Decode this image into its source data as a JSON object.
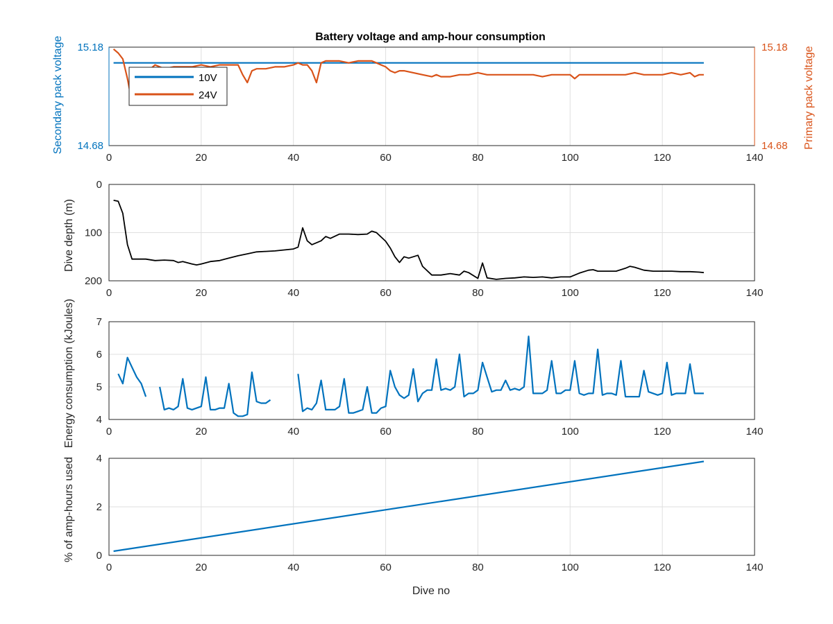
{
  "colors": {
    "blue": "#0072bd",
    "orange": "#d95319",
    "black": "#000000",
    "grid": "#dfdfdf",
    "axis": "#262626"
  },
  "chart_data": [
    {
      "type": "line",
      "title": "Battery voltage and amp-hour consumption",
      "xlabel": "",
      "xlim": [
        0,
        140
      ],
      "xticks": [
        "0",
        "20",
        "40",
        "60",
        "80",
        "100",
        "120",
        "140"
      ],
      "ylabel_left": "Secondary pack voltage",
      "ylabel_right": "Primary pack voltage",
      "ylim": [
        14.68,
        15.18
      ],
      "yticks_left": [
        "14.68",
        "15.18"
      ],
      "yticks_right": [
        "14.68",
        "15.18"
      ],
      "grid": true,
      "legend": "top-left",
      "series": [
        {
          "name": "10V",
          "axis": "left",
          "color": "#0072bd",
          "x": [
            1,
            129
          ],
          "y": [
            15.1,
            15.1
          ]
        },
        {
          "name": "24V",
          "axis": "right",
          "color": "#d95319",
          "x": [
            1,
            2,
            3,
            4,
            5,
            6,
            7,
            8,
            9,
            10,
            12,
            14,
            16,
            18,
            20,
            22,
            24,
            26,
            27,
            28,
            29,
            30,
            31,
            32,
            34,
            36,
            38,
            40,
            41,
            42,
            43,
            44,
            45,
            46,
            47,
            48,
            50,
            52,
            54,
            56,
            57,
            58,
            59,
            60,
            61,
            62,
            63,
            64,
            66,
            68,
            70,
            71,
            72,
            74,
            76,
            78,
            80,
            82,
            84,
            86,
            88,
            90,
            92,
            94,
            96,
            98,
            100,
            101,
            102,
            104,
            106,
            108,
            110,
            112,
            114,
            116,
            118,
            120,
            122,
            124,
            126,
            127,
            128,
            129
          ],
          "y": [
            15.17,
            15.15,
            15.12,
            15.02,
            14.9,
            14.89,
            14.97,
            15.05,
            15.07,
            15.09,
            15.07,
            15.08,
            15.08,
            15.08,
            15.09,
            15.08,
            15.09,
            15.09,
            15.09,
            15.09,
            15.04,
            15.0,
            15.06,
            15.07,
            15.07,
            15.08,
            15.08,
            15.09,
            15.1,
            15.09,
            15.09,
            15.06,
            15.0,
            15.1,
            15.11,
            15.11,
            15.11,
            15.1,
            15.11,
            15.11,
            15.11,
            15.1,
            15.09,
            15.08,
            15.06,
            15.05,
            15.06,
            15.06,
            15.05,
            15.04,
            15.03,
            15.04,
            15.03,
            15.03,
            15.04,
            15.04,
            15.05,
            15.04,
            15.04,
            15.04,
            15.04,
            15.04,
            15.04,
            15.03,
            15.04,
            15.04,
            15.04,
            15.02,
            15.04,
            15.04,
            15.04,
            15.04,
            15.04,
            15.04,
            15.05,
            15.04,
            15.04,
            15.04,
            15.05,
            15.04,
            15.05,
            15.03,
            15.04,
            15.04
          ]
        }
      ]
    },
    {
      "type": "line",
      "title": "",
      "xlabel": "",
      "ylabel": "Dive depth (m)",
      "xlim": [
        0,
        140
      ],
      "xticks": [
        "0",
        "20",
        "40",
        "60",
        "80",
        "100",
        "120",
        "140"
      ],
      "ylim": [
        0,
        200
      ],
      "yticks": [
        "0",
        "100",
        "200"
      ],
      "y_reversed": true,
      "grid": true,
      "series": [
        {
          "color": "#000000",
          "x": [
            1,
            2,
            3,
            4,
            5,
            6,
            8,
            10,
            12,
            14,
            15,
            16,
            18,
            19,
            20,
            22,
            24,
            26,
            28,
            30,
            32,
            34,
            36,
            38,
            40,
            41,
            42,
            43,
            44,
            46,
            47,
            48,
            50,
            52,
            54,
            56,
            57,
            58,
            60,
            61,
            62,
            63,
            64,
            65,
            66,
            67,
            68,
            70,
            72,
            74,
            76,
            77,
            78,
            80,
            81,
            82,
            84,
            86,
            88,
            90,
            92,
            94,
            96,
            98,
            100,
            102,
            104,
            105,
            106,
            108,
            110,
            112,
            113,
            114,
            116,
            118,
            120,
            122,
            124,
            126,
            128,
            129
          ],
          "y": [
            33,
            35,
            60,
            125,
            155,
            155,
            155,
            158,
            157,
            158,
            162,
            160,
            165,
            167,
            165,
            160,
            158,
            153,
            148,
            144,
            140,
            139,
            138,
            136,
            134,
            130,
            90,
            117,
            125,
            117,
            108,
            112,
            103,
            103,
            104,
            103,
            97,
            100,
            118,
            132,
            150,
            162,
            150,
            153,
            150,
            147,
            170,
            188,
            188,
            185,
            188,
            180,
            183,
            195,
            163,
            194,
            197,
            195,
            194,
            192,
            193,
            192,
            194,
            192,
            192,
            184,
            178,
            177,
            180,
            180,
            180,
            174,
            170,
            172,
            178,
            180,
            180,
            180,
            181,
            181,
            182,
            183
          ]
        }
      ]
    },
    {
      "type": "line",
      "title": "",
      "xlabel": "",
      "ylabel": "Energy consumption (kJoules)",
      "xlim": [
        0,
        140
      ],
      "xticks": [
        "0",
        "20",
        "40",
        "60",
        "80",
        "100",
        "120",
        "140"
      ],
      "ylim": [
        4,
        7
      ],
      "yticks": [
        "4",
        "5",
        "6",
        "7"
      ],
      "grid": true,
      "series": [
        {
          "color": "#0072bd",
          "segments": [
            {
              "x": [
                2,
                3,
                4,
                5,
                6,
                7,
                8
              ],
              "y": [
                5.4,
                5.1,
                5.9,
                5.6,
                5.3,
                5.1,
                4.7
              ]
            },
            {
              "x": [
                11,
                12,
                13,
                14,
                15,
                16,
                17,
                18,
                19,
                20,
                21,
                22,
                23,
                24,
                25,
                26,
                27,
                28,
                29,
                30,
                31,
                32,
                33,
                34,
                35
              ],
              "y": [
                5.0,
                4.3,
                4.35,
                4.3,
                4.4,
                5.25,
                4.35,
                4.3,
                4.35,
                4.4,
                5.3,
                4.3,
                4.3,
                4.35,
                4.35,
                5.1,
                4.2,
                4.1,
                4.1,
                4.15,
                5.45,
                4.55,
                4.5,
                4.5,
                4.6
              ]
            },
            {
              "x": [
                41,
                42,
                43,
                44,
                45,
                46,
                47,
                48,
                49,
                50,
                51,
                52,
                53,
                54,
                55,
                56,
                57,
                58,
                59,
                60,
                61,
                62,
                63,
                64,
                65,
                66,
                67,
                68,
                69,
                70,
                71,
                72,
                73,
                74,
                75,
                76,
                77,
                78,
                79,
                80,
                81,
                82,
                83,
                84,
                85,
                86,
                87,
                88,
                89,
                90,
                91,
                92,
                93,
                94,
                95,
                96,
                97,
                98,
                99,
                100,
                101,
                102,
                103,
                104,
                105,
                106,
                107,
                108,
                109,
                110,
                111,
                112,
                113,
                114,
                115,
                116,
                117,
                118,
                119,
                120,
                121,
                122,
                123,
                124,
                125,
                126,
                127,
                128,
                129
              ],
              "y": [
                5.4,
                4.25,
                4.35,
                4.3,
                4.5,
                5.2,
                4.3,
                4.3,
                4.3,
                4.4,
                5.25,
                4.2,
                4.2,
                4.25,
                4.3,
                5.0,
                4.2,
                4.2,
                4.35,
                4.4,
                5.5,
                5.0,
                4.75,
                4.65,
                4.75,
                5.55,
                4.55,
                4.8,
                4.9,
                4.9,
                5.85,
                4.9,
                4.95,
                4.9,
                5.0,
                6.0,
                4.7,
                4.8,
                4.8,
                4.9,
                5.75,
                5.3,
                4.85,
                4.9,
                4.9,
                5.2,
                4.9,
                4.95,
                4.9,
                5.0,
                6.55,
                4.8,
                4.8,
                4.8,
                4.9,
                5.8,
                4.8,
                4.8,
                4.9,
                4.9,
                5.8,
                4.8,
                4.75,
                4.8,
                4.8,
                6.15,
                4.75,
                4.8,
                4.8,
                4.75,
                5.8,
                4.7,
                4.7,
                4.7,
                4.7,
                5.5,
                4.85,
                4.8,
                4.75,
                4.8,
                5.75,
                4.75,
                4.8,
                4.8,
                4.8,
                5.7,
                4.8,
                4.8,
                4.8
              ]
            }
          ]
        }
      ]
    },
    {
      "type": "line",
      "title": "",
      "xlabel": "Dive no",
      "ylabel": "% of amp-hours used",
      "xlim": [
        0,
        140
      ],
      "xticks": [
        "0",
        "20",
        "40",
        "60",
        "80",
        "100",
        "120",
        "140"
      ],
      "ylim": [
        0,
        4
      ],
      "yticks": [
        "0",
        "2",
        "4"
      ],
      "grid": true,
      "series": [
        {
          "color": "#0072bd",
          "x": [
            1,
            129
          ],
          "y": [
            0.17,
            3.87
          ]
        }
      ]
    }
  ]
}
